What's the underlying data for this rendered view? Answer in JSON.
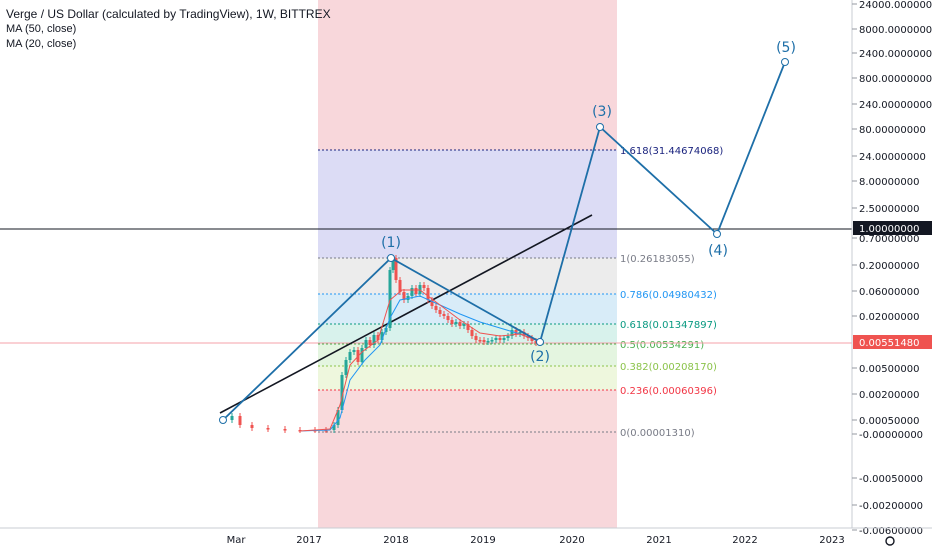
{
  "chart_title": "Verge / US Dollar (calculated by TradingView), 1W, BITTREX",
  "indicators": [
    "MA (50, close)",
    "MA (20, close)"
  ],
  "chart_data": {
    "type": "line",
    "title": "Verge / US Dollar (calculated by TradingView), 1W, BITTREX",
    "x_ticks": [
      "Mar",
      "2017",
      "2018",
      "2019",
      "2020",
      "2021",
      "2022",
      "2023"
    ],
    "y_ticks": [
      "24000.00000000",
      "8000.00000000",
      "2400.00000000",
      "800.00000000",
      "240.00000000",
      "80.00000000",
      "24.00000000",
      "8.00000000",
      "2.50000000",
      "0.70000000",
      "0.20000000",
      "0.06000000",
      "0.02000000",
      "0.00500000",
      "0.00200000",
      "0.00050000",
      "-0.00000000",
      "-0.00050000",
      "-0.00200000",
      "-0.00600000"
    ],
    "price_marks": [
      {
        "label": "1.00000000",
        "color": "#131722"
      },
      {
        "label": "0.00551480",
        "color": "#ef5350"
      }
    ],
    "fib_levels": [
      {
        "label": "1.618(31.44674068)",
        "color": "#1a237e"
      },
      {
        "label": "1(0.26183055)",
        "color": "#787b86"
      },
      {
        "label": "0.786(0.04980432)",
        "color": "#2196f3"
      },
      {
        "label": "0.618(0.01347897)",
        "color": "#089981"
      },
      {
        "label": "0.5(0.00534291)",
        "color": "#4caf50"
      },
      {
        "label": "0.382(0.00208170)",
        "color": "#8bc34a"
      },
      {
        "label": "0.236(0.00060396)",
        "color": "#f23645"
      },
      {
        "label": "0(0.00001310)",
        "color": "#787b86"
      }
    ],
    "wave_labels": [
      "(1)",
      "(2)",
      "(3)",
      "(4)",
      "(5)"
    ],
    "colors": {
      "up": "#26a69a",
      "down": "#ef5350",
      "wave": "#1e6fa8",
      "trend": "#131722",
      "ma50": "#2196f3",
      "ma20": "#ef5350"
    }
  }
}
